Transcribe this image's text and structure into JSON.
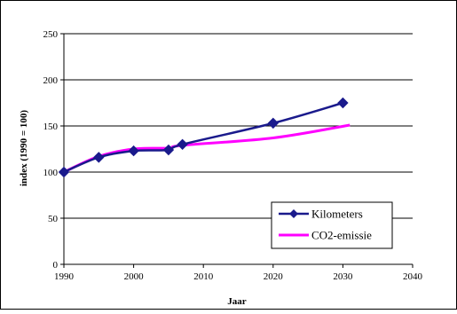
{
  "chart_data": {
    "type": "line",
    "xlabel": "Jaar",
    "ylabel": "index (1990 = 100)",
    "xlim": [
      1990,
      2040
    ],
    "ylim": [
      0,
      250
    ],
    "x_ticks": [
      1990,
      2000,
      2010,
      2020,
      2030,
      2040
    ],
    "y_ticks": [
      0,
      50,
      100,
      150,
      200,
      250
    ],
    "grid": "horizontal",
    "legend_position": "bottom-right",
    "series": [
      {
        "name": "Kilometers",
        "color": "#1a1a8c",
        "marker": "diamond",
        "x": [
          1990,
          1995,
          2000,
          2005,
          2007,
          2020,
          2030
        ],
        "y": [
          100,
          116,
          123,
          124,
          130,
          153,
          175
        ]
      },
      {
        "name": "CO2-emissie",
        "color": "#ff00ff",
        "marker": "none",
        "x": [
          1990,
          1995,
          2000,
          2005,
          2007,
          2020,
          2031
        ],
        "y": [
          100,
          117,
          125,
          126,
          129,
          137,
          151
        ]
      }
    ]
  }
}
